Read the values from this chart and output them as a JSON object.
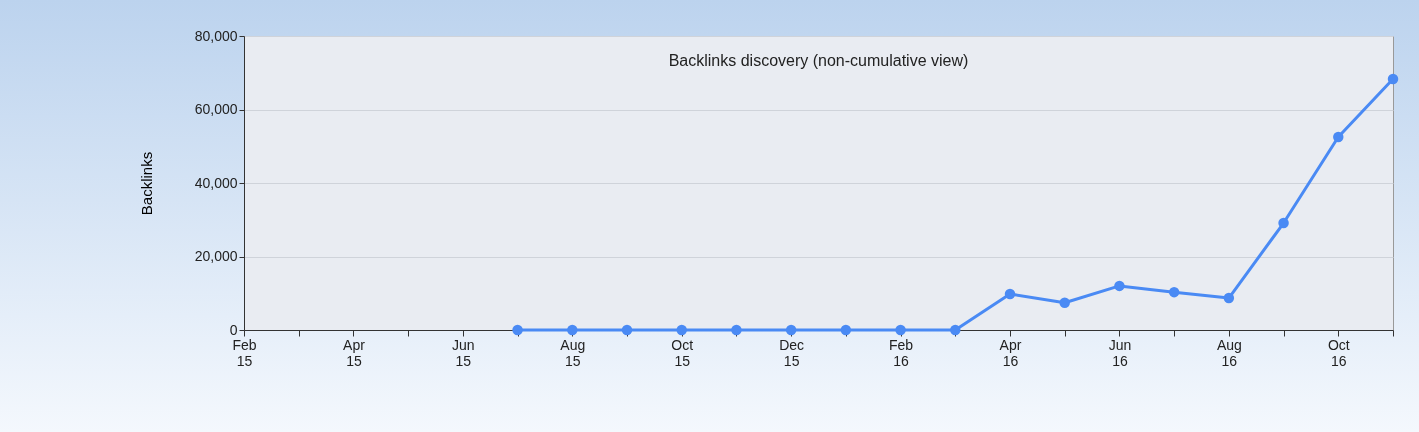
{
  "chart_data": {
    "type": "line",
    "title": "Backlinks discovery (non-cumulative view)",
    "ylabel": "Backlinks",
    "categories": [
      "Feb 15",
      null,
      "Apr 15",
      null,
      "Jun 15",
      null,
      "Aug 15",
      null,
      "Oct 15",
      null,
      "Dec 15",
      null,
      "Feb 16",
      null,
      "Apr 16",
      null,
      "Jun 16",
      null,
      "Aug 16",
      null,
      "Oct 16",
      null
    ],
    "series": [
      {
        "color": "#4a8af4",
        "values": [
          null,
          null,
          null,
          null,
          null,
          0,
          0,
          0,
          0,
          0,
          0,
          0,
          0,
          0,
          9800,
          7400,
          12000,
          10300,
          8700,
          29100,
          52500,
          68300
        ]
      }
    ],
    "ylim": [
      0,
      80000
    ],
    "yticks": [
      0,
      {
        "value": 20000,
        "label": "20,000"
      },
      {
        "value": 40000,
        "label": "40,000"
      },
      {
        "value": 60000,
        "label": "60,000"
      },
      {
        "value": 80000,
        "label": "80,000"
      }
    ],
    "grid": "y",
    "marker": "circle",
    "line_style": "solid"
  }
}
